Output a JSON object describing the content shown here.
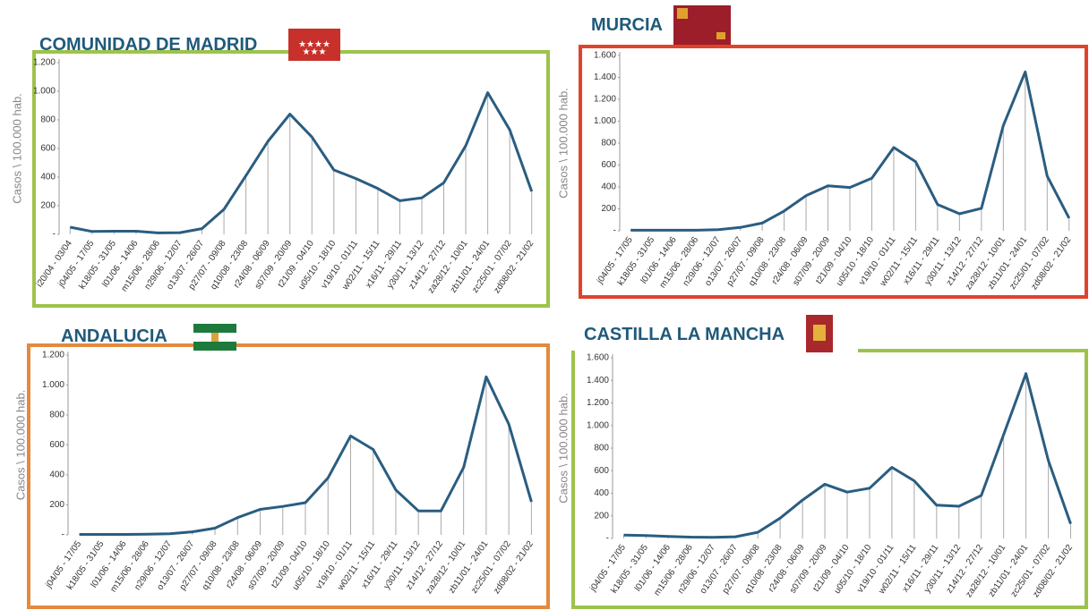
{
  "chart_data": [
    {
      "type": "line",
      "title": "COMUNIDAD DE MADRID",
      "ylabel": "Casos \\ 100.000 hab.",
      "color": "#2a5d80",
      "categories": [
        "i20/04 - 03/04",
        "j04/05 - 17/05",
        "k18/05 - 31/05",
        "l01/06 - 14/06",
        "m15/06 - 28/06",
        "n29/06 - 12/07",
        "o13/07 - 26/07",
        "p27/07 - 09/08",
        "q10/08 - 23/08",
        "r24/08 - 06/09",
        "s07/09 - 20/09",
        "t21/09 - 04/10",
        "u05/10 - 18/10",
        "v19/10 - 01/11",
        "w02/11 - 15/11",
        "x16/11 - 29/11",
        "y30/11 - 13/12",
        "z14/12 - 27/12",
        "za28/12 - 10/01",
        "zb11/01 - 24/01",
        "zc25/01 - 07/02",
        "zd08/02 - 21/02"
      ],
      "values": [
        50,
        20,
        22,
        22,
        10,
        12,
        40,
        175,
        410,
        650,
        840,
        680,
        450,
        390,
        320,
        235,
        255,
        360,
        620,
        990,
        730,
        300
      ],
      "ylim": [
        0,
        1200
      ],
      "yticks": [
        {
          "value": 0,
          "label": "-"
        },
        200,
        400,
        600,
        800,
        {
          "value": 1000,
          "label": "1.000"
        },
        {
          "value": 1200,
          "label": "1.200"
        }
      ]
    },
    {
      "type": "line",
      "title": "MURCIA",
      "ylabel": "Casos \\ 100.000 hab.",
      "color": "#2a5d80",
      "categories": [
        "j04/05 - 17/05",
        "k18/05 - 31/05",
        "l01/06 - 14/06",
        "m15/06 - 28/06",
        "n29/06 - 12/07",
        "o13/07 - 26/07",
        "p27/07 - 09/08",
        "q10/08 - 23/08",
        "r24/08 - 06/09",
        "s07/09 - 20/09",
        "t21/09 - 04/10",
        "u05/10 - 18/10",
        "v19/10 - 01/11",
        "w02/11 - 15/11",
        "x16/11 - 29/11",
        "y30/11 - 13/12",
        "z14/12 - 27/12",
        "za28/12 - 10/01",
        "zb11/01 - 24/01",
        "zc25/01 - 07/02",
        "zd08/02 - 21/02"
      ],
      "values": [
        5,
        5,
        5,
        5,
        10,
        30,
        70,
        180,
        320,
        410,
        395,
        480,
        760,
        630,
        240,
        155,
        205,
        960,
        1450,
        500,
        115
      ],
      "ylim": [
        0,
        1600
      ],
      "yticks": [
        {
          "value": 0,
          "label": "-"
        },
        200,
        400,
        600,
        800,
        {
          "value": 1000,
          "label": "1.000"
        },
        {
          "value": 1200,
          "label": "1.200"
        },
        {
          "value": 1400,
          "label": "1.400"
        },
        {
          "value": 1600,
          "label": "1.600"
        }
      ]
    },
    {
      "type": "line",
      "title": "ANDALUCIA",
      "ylabel": "Casos \\ 100.000 hab.",
      "color": "#2a5d80",
      "categories": [
        "j04/05 - 17/05",
        "k18/05 - 31/05",
        "l01/06 - 14/06",
        "m15/06 - 28/06",
        "n29/06 - 12/07",
        "o13/07 - 26/07",
        "p27/07 - 09/08",
        "q10/08 - 23/08",
        "r24/08 - 06/09",
        "s07/09 - 20/09",
        "t21/09 - 04/10",
        "u05/10 - 18/10",
        "v19/10 - 01/11",
        "w02/11 - 15/11",
        "x16/11 - 29/11",
        "y30/11 - 13/12",
        "z14/12 - 27/12",
        "za28/12 - 10/01",
        "zb11/01 - 24/01",
        "zc25/01 - 07/02",
        "zd08/02 - 21/02"
      ],
      "values": [
        3,
        3,
        3,
        5,
        8,
        20,
        45,
        115,
        170,
        190,
        215,
        380,
        660,
        570,
        300,
        160,
        160,
        450,
        1055,
        740,
        220
      ],
      "ylim": [
        0,
        1200
      ],
      "yticks": [
        {
          "value": 0,
          "label": "-"
        },
        200,
        400,
        600,
        800,
        {
          "value": 1000,
          "label": "1.000"
        },
        {
          "value": 1200,
          "label": "1.200"
        }
      ]
    },
    {
      "type": "line",
      "title": "CASTILLA LA MANCHA",
      "ylabel": "Casos \\ 100.000 hab.",
      "color": "#2a5d80",
      "categories": [
        "j04/05 - 17/05",
        "k18/05 - 31/05",
        "l01/06 - 14/06",
        "m15/06 - 28/06",
        "n29/06 - 12/07",
        "o13/07 - 26/07",
        "p27/07 - 09/08",
        "q10/08 - 23/08",
        "r24/08 - 06/09",
        "s07/09 - 20/09",
        "t21/09 - 04/10",
        "u05/10 - 18/10",
        "v19/10 - 01/11",
        "w02/11 - 15/11",
        "x16/11 - 29/11",
        "y30/11 - 13/12",
        "z14/12 - 27/12",
        "za28/12 - 10/01",
        "zb11/01 - 24/01",
        "zc25/01 - 07/02",
        "zd08/02 - 21/02"
      ],
      "values": [
        30,
        25,
        18,
        12,
        10,
        15,
        55,
        180,
        340,
        480,
        410,
        445,
        630,
        510,
        295,
        285,
        380,
        920,
        1460,
        690,
        130
      ],
      "ylim": [
        0,
        1600
      ],
      "yticks": [
        {
          "value": 0,
          "label": "-"
        },
        200,
        400,
        600,
        800,
        {
          "value": 1000,
          "label": "1.000"
        },
        {
          "value": 1200,
          "label": "1.200"
        },
        {
          "value": 1400,
          "label": "1.400"
        },
        {
          "value": 1600,
          "label": "1.600"
        }
      ]
    }
  ]
}
